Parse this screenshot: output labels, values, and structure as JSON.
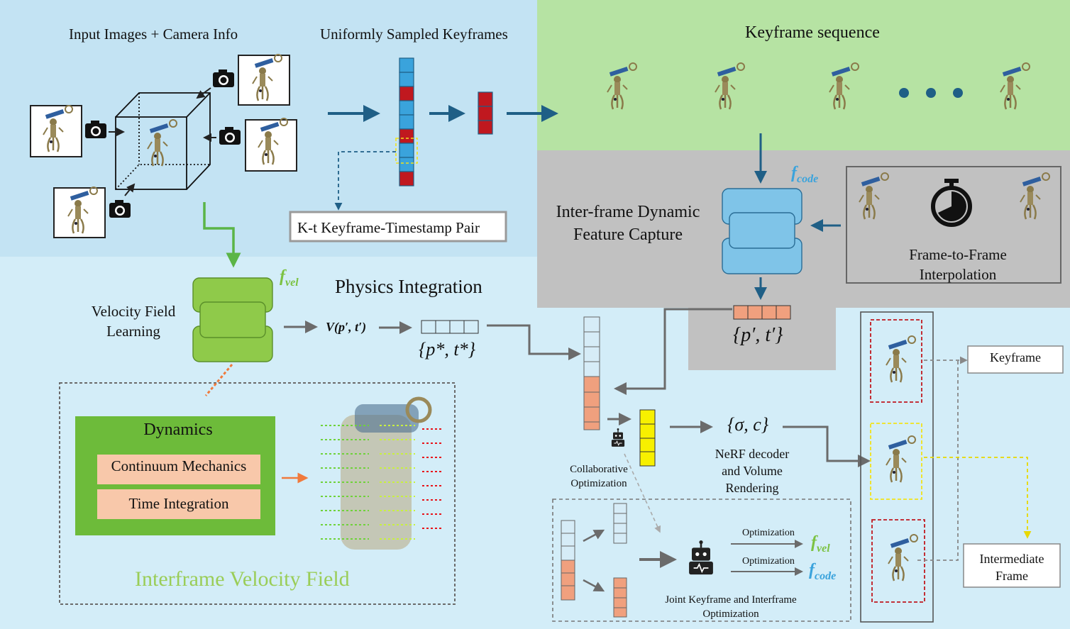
{
  "input": {
    "title": "Input Images + Camera Info",
    "sampled_title": "Uniformly Sampled Keyframes",
    "kt_pair": "K-t Keyframe-Timestamp Pair"
  },
  "keyframe_seq": {
    "title": "Keyframe sequence"
  },
  "interframe": {
    "title_line1": "Inter-frame Dynamic",
    "title_line2": "Feature Capture",
    "fcode_main": "f",
    "fcode_sub": "code",
    "interp_line1": "Frame-to-Frame",
    "interp_line2": "Interpolation",
    "pt_prime": "{p′, t′}"
  },
  "velocity": {
    "fvel_main": "f",
    "fvel_sub": "vel",
    "label_line1": "Velocity Field",
    "label_line2": "Learning",
    "v_expr": "V(p′, t′)",
    "physics_title": "Physics Integration",
    "pt_star": "{p*, t*}",
    "dynamics_title": "Dynamics",
    "continuum": "Continuum Mechanics",
    "time_integration": "Time Integration",
    "field_title": "Interframe Velocity Field"
  },
  "render": {
    "sigma_c": "{σ, c}",
    "decoder_line1": "NeRF decoder",
    "decoder_line2": "and Volume",
    "decoder_line3": "Rendering",
    "collab_line1": "Collaborative",
    "collab_line2": "Optimization",
    "opt_label_1": "Optimization",
    "opt_label_2": "Optimization",
    "fvel_main": "f",
    "fvel_sub": "vel",
    "fcode_main": "f",
    "fcode_sub": "code",
    "joint_line1": "Joint Keyframe and Interframe",
    "joint_line2": "Optimization",
    "keyframe_label": "Keyframe",
    "intermediate_line1": "Intermediate",
    "intermediate_line2": "Frame"
  },
  "colors": {
    "panel_blue": "#c3e3f3",
    "panel_lightblue": "#d3edf8",
    "panel_green": "#b6e3a3",
    "panel_gray": "#c1c1c1",
    "arrow_blue": "#1f5f86",
    "arrow_gray": "#6b6b6b",
    "arrow_green": "#5bb547",
    "cell_blue": "#3aa3dc",
    "cell_red": "#c0181f",
    "cell_orange": "#f0a07e",
    "cell_yellow": "#f7f000",
    "block_blue": "#7fc4e8",
    "block_green": "#8fca4a",
    "fcode_color": "#3aa3dc",
    "fvel_color": "#7cc243"
  },
  "icons": [
    "camera-icon",
    "stopwatch-icon",
    "robot-icon",
    "statue-icon"
  ]
}
